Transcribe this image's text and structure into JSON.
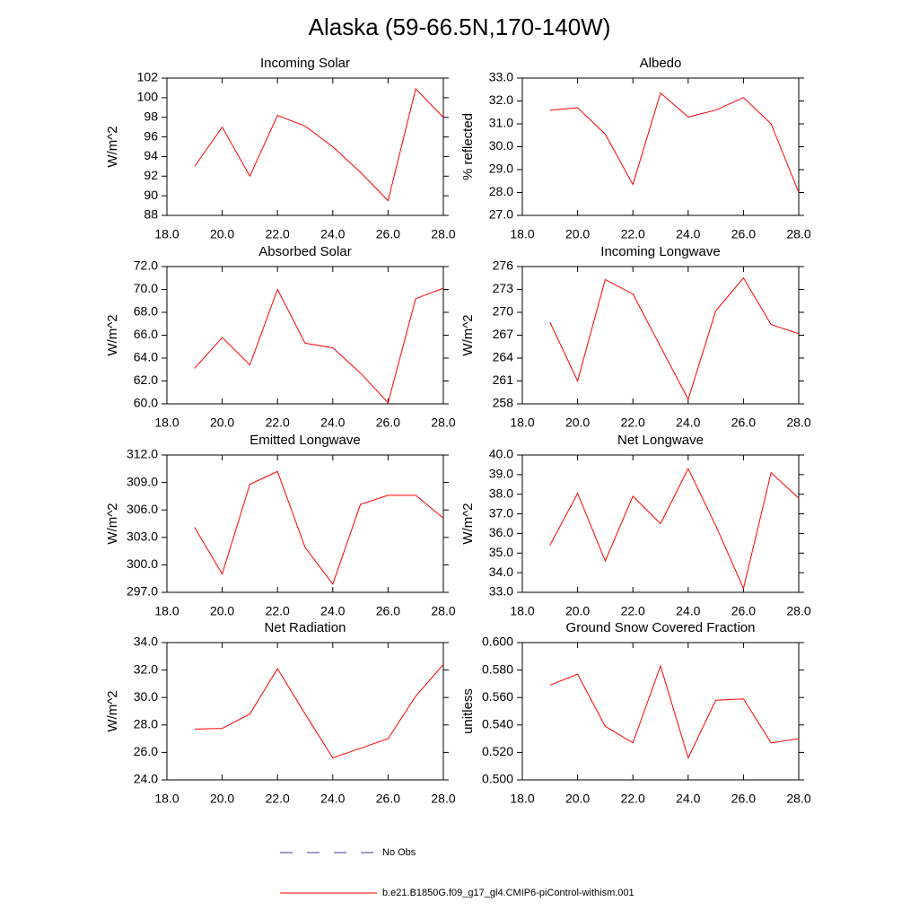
{
  "title": "Alaska (59-66.5N,170-140W)",
  "legend": [
    {
      "name": "No Obs",
      "color": "#3a3aa0",
      "dash": true
    },
    {
      "name": "b.e21.B1850G.f09_g17_gl4.CMIP6-piControl-withism.001",
      "color": "#ff0000",
      "dash": false
    }
  ],
  "chart_data": [
    {
      "type": "line",
      "title": "Incoming Solar",
      "ylabel": "W/m^2",
      "x": [
        19,
        20,
        21,
        22,
        23,
        24,
        25,
        26,
        27,
        28
      ],
      "series": [
        {
          "color": "#ff0000",
          "values": [
            93.0,
            97.0,
            92.0,
            98.2,
            97.1,
            95.0,
            92.4,
            89.5,
            100.9,
            98.0
          ]
        }
      ],
      "xlim": [
        18,
        28
      ],
      "xticks": [
        {
          "value": 18,
          "label": "18.0"
        },
        {
          "value": 20,
          "label": "20.0"
        },
        {
          "value": 22,
          "label": "22.0"
        },
        {
          "value": 24,
          "label": "24.0"
        },
        {
          "value": 26,
          "label": "26.0"
        },
        {
          "value": 28,
          "label": "28.0"
        }
      ],
      "ylim": [
        88,
        102
      ],
      "yticks": [
        88,
        90,
        92,
        94,
        96,
        98,
        100,
        102
      ]
    },
    {
      "type": "line",
      "title": "Albedo",
      "ylabel": "% reflected",
      "x": [
        19,
        20,
        21,
        22,
        23,
        24,
        25,
        26,
        27,
        28
      ],
      "series": [
        {
          "color": "#ff0000",
          "values": [
            31.6,
            31.7,
            30.55,
            28.35,
            32.35,
            31.3,
            31.6,
            32.15,
            31.0,
            28.0
          ]
        }
      ],
      "xlim": [
        18,
        28
      ],
      "xticks": [
        {
          "value": 18,
          "label": "18.0"
        },
        {
          "value": 20,
          "label": "20.0"
        },
        {
          "value": 22,
          "label": "22.0"
        },
        {
          "value": 24,
          "label": "24.0"
        },
        {
          "value": 26,
          "label": "26.0"
        },
        {
          "value": 28,
          "label": "28.0"
        }
      ],
      "ylim": [
        27,
        33
      ],
      "yticks": [
        {
          "value": 27,
          "label": "27.0"
        },
        {
          "value": 28,
          "label": "28.0"
        },
        {
          "value": 29,
          "label": "29.0"
        },
        {
          "value": 30,
          "label": "30.0"
        },
        {
          "value": 31,
          "label": "31.0"
        },
        {
          "value": 32,
          "label": "32.0"
        },
        {
          "value": 33,
          "label": "33.0"
        }
      ]
    },
    {
      "type": "line",
      "title": "Absorbed Solar",
      "ylabel": "W/m^2",
      "x": [
        19,
        20,
        21,
        22,
        23,
        24,
        25,
        26,
        27,
        28
      ],
      "series": [
        {
          "color": "#ff0000",
          "values": [
            63.1,
            65.8,
            63.4,
            70.0,
            65.3,
            64.9,
            62.7,
            60.1,
            69.2,
            70.1
          ]
        }
      ],
      "xlim": [
        18,
        28
      ],
      "xticks": [
        {
          "value": 18,
          "label": "18.0"
        },
        {
          "value": 20,
          "label": "20.0"
        },
        {
          "value": 22,
          "label": "22.0"
        },
        {
          "value": 24,
          "label": "24.0"
        },
        {
          "value": 26,
          "label": "26.0"
        },
        {
          "value": 28,
          "label": "28.0"
        }
      ],
      "ylim": [
        60,
        72
      ],
      "yticks": [
        {
          "value": 60,
          "label": "60.0"
        },
        {
          "value": 62,
          "label": "62.0"
        },
        {
          "value": 64,
          "label": "64.0"
        },
        {
          "value": 66,
          "label": "66.0"
        },
        {
          "value": 68,
          "label": "68.0"
        },
        {
          "value": 70,
          "label": "70.0"
        },
        {
          "value": 72,
          "label": "72.0"
        }
      ]
    },
    {
      "type": "line",
      "title": "Incoming Longwave",
      "ylabel": "W/m^2",
      "x": [
        19,
        20,
        21,
        22,
        23,
        24,
        25,
        26,
        27,
        28
      ],
      "series": [
        {
          "color": "#ff0000",
          "values": [
            268.7,
            261.0,
            274.3,
            272.4,
            265.5,
            258.6,
            270.2,
            274.5,
            268.4,
            267.2
          ]
        }
      ],
      "xlim": [
        18,
        28
      ],
      "xticks": [
        {
          "value": 18,
          "label": "18.0"
        },
        {
          "value": 20,
          "label": "20.0"
        },
        {
          "value": 22,
          "label": "22.0"
        },
        {
          "value": 24,
          "label": "24.0"
        },
        {
          "value": 26,
          "label": "26.0"
        },
        {
          "value": 28,
          "label": "28.0"
        }
      ],
      "ylim": [
        258,
        276
      ],
      "yticks": [
        258,
        261,
        264,
        267,
        270,
        273,
        276
      ]
    },
    {
      "type": "line",
      "title": "Emitted Longwave",
      "ylabel": "W/m^2",
      "x": [
        19,
        20,
        21,
        22,
        23,
        24,
        25,
        26,
        27,
        28
      ],
      "series": [
        {
          "color": "#ff0000",
          "values": [
            304.1,
            299.0,
            308.8,
            310.2,
            301.9,
            297.9,
            306.6,
            307.6,
            307.6,
            305.1
          ]
        }
      ],
      "xlim": [
        18,
        28
      ],
      "xticks": [
        {
          "value": 18,
          "label": "18.0"
        },
        {
          "value": 20,
          "label": "20.0"
        },
        {
          "value": 22,
          "label": "22.0"
        },
        {
          "value": 24,
          "label": "24.0"
        },
        {
          "value": 26,
          "label": "26.0"
        },
        {
          "value": 28,
          "label": "28.0"
        }
      ],
      "ylim": [
        297,
        312
      ],
      "yticks": [
        {
          "value": 297,
          "label": "297.0"
        },
        {
          "value": 300,
          "label": "300.0"
        },
        {
          "value": 303,
          "label": "303.0"
        },
        {
          "value": 306,
          "label": "306.0"
        },
        {
          "value": 309,
          "label": "309.0"
        },
        {
          "value": 312,
          "label": "312.0"
        }
      ]
    },
    {
      "type": "line",
      "title": "Net Longwave",
      "ylabel": "W/m^2",
      "x": [
        19,
        20,
        21,
        22,
        23,
        24,
        25,
        26,
        27,
        28
      ],
      "series": [
        {
          "color": "#ff0000",
          "values": [
            35.4,
            38.05,
            34.6,
            37.9,
            36.5,
            39.3,
            36.4,
            33.2,
            39.1,
            37.8
          ]
        }
      ],
      "xlim": [
        18,
        28
      ],
      "xticks": [
        {
          "value": 18,
          "label": "18.0"
        },
        {
          "value": 20,
          "label": "20.0"
        },
        {
          "value": 22,
          "label": "22.0"
        },
        {
          "value": 24,
          "label": "24.0"
        },
        {
          "value": 26,
          "label": "26.0"
        },
        {
          "value": 28,
          "label": "28.0"
        }
      ],
      "ylim": [
        33,
        40
      ],
      "yticks": [
        {
          "value": 33,
          "label": "33.0"
        },
        {
          "value": 34,
          "label": "34.0"
        },
        {
          "value": 35,
          "label": "35.0"
        },
        {
          "value": 36,
          "label": "36.0"
        },
        {
          "value": 37,
          "label": "37.0"
        },
        {
          "value": 38,
          "label": "38.0"
        },
        {
          "value": 39,
          "label": "39.0"
        },
        {
          "value": 40,
          "label": "40.0"
        }
      ]
    },
    {
      "type": "line",
      "title": "Net Radiation",
      "ylabel": "W/m^2",
      "x": [
        19,
        20,
        21,
        22,
        23,
        24,
        25,
        26,
        27,
        28
      ],
      "series": [
        {
          "color": "#ff0000",
          "values": [
            27.7,
            27.75,
            28.8,
            32.1,
            28.8,
            25.6,
            26.3,
            27.0,
            30.1,
            32.4
          ]
        }
      ],
      "xlim": [
        18,
        28
      ],
      "xticks": [
        {
          "value": 18,
          "label": "18.0"
        },
        {
          "value": 20,
          "label": "20.0"
        },
        {
          "value": 22,
          "label": "22.0"
        },
        {
          "value": 24,
          "label": "24.0"
        },
        {
          "value": 26,
          "label": "26.0"
        },
        {
          "value": 28,
          "label": "28.0"
        }
      ],
      "ylim": [
        24,
        34
      ],
      "yticks": [
        {
          "value": 24,
          "label": "24.0"
        },
        {
          "value": 26,
          "label": "26.0"
        },
        {
          "value": 28,
          "label": "28.0"
        },
        {
          "value": 30,
          "label": "30.0"
        },
        {
          "value": 32,
          "label": "32.0"
        },
        {
          "value": 34,
          "label": "34.0"
        }
      ]
    },
    {
      "type": "line",
      "title": "Ground Snow Covered Fraction",
      "ylabel": "unitless",
      "x": [
        19,
        20,
        21,
        22,
        23,
        24,
        25,
        26,
        27,
        28
      ],
      "series": [
        {
          "color": "#ff0000",
          "values": [
            0.569,
            0.577,
            0.539,
            0.527,
            0.583,
            0.516,
            0.558,
            0.559,
            0.527,
            0.53
          ]
        }
      ],
      "xlim": [
        18,
        28
      ],
      "xticks": [
        {
          "value": 18,
          "label": "18.0"
        },
        {
          "value": 20,
          "label": "20.0"
        },
        {
          "value": 22,
          "label": "22.0"
        },
        {
          "value": 24,
          "label": "24.0"
        },
        {
          "value": 26,
          "label": "26.0"
        },
        {
          "value": 28,
          "label": "28.0"
        }
      ],
      "ylim": [
        0.5,
        0.6
      ],
      "yticks": [
        {
          "value": 0.5,
          "label": "0.500"
        },
        {
          "value": 0.52,
          "label": "0.520"
        },
        {
          "value": 0.54,
          "label": "0.540"
        },
        {
          "value": 0.56,
          "label": "0.560"
        },
        {
          "value": 0.58,
          "label": "0.580"
        },
        {
          "value": 0.6,
          "label": "0.600"
        }
      ]
    }
  ]
}
